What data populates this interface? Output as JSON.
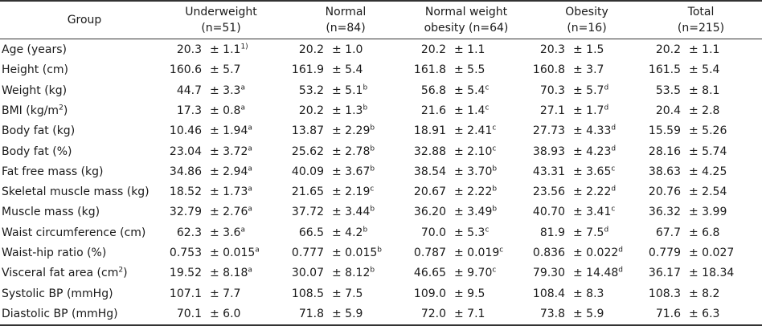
{
  "header": {
    "group": "Group",
    "columns": [
      {
        "name": "Underweight",
        "n": "(n=51)"
      },
      {
        "name": "Normal",
        "n": "(n=84)"
      },
      {
        "name": "Normal weight",
        "n": "obesity (n=64)"
      },
      {
        "name": "Obesity",
        "n": "(n=16)"
      },
      {
        "name": "Total",
        "n": "(n=215)"
      }
    ]
  },
  "rows": [
    {
      "label": "Age (years)",
      "cells": [
        {
          "m": "20.3",
          "sd": "± 1.1",
          "sup": "1)"
        },
        {
          "m": "20.2",
          "sd": "± 1.0",
          "sup": ""
        },
        {
          "m": "20.2",
          "sd": "± 1.1",
          "sup": ""
        },
        {
          "m": "20.3",
          "sd": "± 1.5",
          "sup": ""
        },
        {
          "m": "20.2",
          "sd": "± 1.1",
          "sup": ""
        }
      ]
    },
    {
      "label": "Height (cm)",
      "cells": [
        {
          "m": "160.6",
          "sd": "± 5.7",
          "sup": ""
        },
        {
          "m": "161.9",
          "sd": "± 5.4",
          "sup": ""
        },
        {
          "m": "161.8",
          "sd": "± 5.5",
          "sup": ""
        },
        {
          "m": "160.8",
          "sd": "± 3.7",
          "sup": ""
        },
        {
          "m": "161.5",
          "sd": "± 5.4",
          "sup": ""
        }
      ]
    },
    {
      "label": "Weight (kg)",
      "cells": [
        {
          "m": "44.7",
          "sd": "± 3.3",
          "sup": "a"
        },
        {
          "m": "53.2",
          "sd": "± 5.1",
          "sup": "b"
        },
        {
          "m": "56.8",
          "sd": "± 5.4",
          "sup": "c"
        },
        {
          "m": "70.3",
          "sd": "± 5.7",
          "sup": "d"
        },
        {
          "m": "53.5",
          "sd": "± 8.1",
          "sup": ""
        }
      ]
    },
    {
      "label": "BMI (kg/m",
      "labelSup": "2",
      "labelEnd": ")",
      "cells": [
        {
          "m": "17.3",
          "sd": "± 0.8",
          "sup": "a"
        },
        {
          "m": "20.2",
          "sd": "± 1.3",
          "sup": "b"
        },
        {
          "m": "21.6",
          "sd": "± 1.4",
          "sup": "c"
        },
        {
          "m": "27.1",
          "sd": "± 1.7",
          "sup": "d"
        },
        {
          "m": "20.4",
          "sd": "± 2.8",
          "sup": ""
        }
      ]
    },
    {
      "label": "Body fat (kg)",
      "cells": [
        {
          "m": "10.46",
          "sd": "± 1.94",
          "sup": "a"
        },
        {
          "m": "13.87",
          "sd": "± 2.29",
          "sup": "b"
        },
        {
          "m": "18.91",
          "sd": "± 2.41",
          "sup": "c"
        },
        {
          "m": "27.73",
          "sd": "± 4.33",
          "sup": "d"
        },
        {
          "m": "15.59",
          "sd": "± 5.26",
          "sup": ""
        }
      ]
    },
    {
      "label": "Body fat (%)",
      "cells": [
        {
          "m": "23.04",
          "sd": "± 3.72",
          "sup": "a"
        },
        {
          "m": "25.62",
          "sd": "± 2.78",
          "sup": "b"
        },
        {
          "m": "32.88",
          "sd": "± 2.10",
          "sup": "c"
        },
        {
          "m": "38.93",
          "sd": "± 4.23",
          "sup": "d"
        },
        {
          "m": "28.16",
          "sd": "± 5.74",
          "sup": ""
        }
      ]
    },
    {
      "label": "Fat free mass (kg)",
      "cells": [
        {
          "m": "34.86",
          "sd": "± 2.94",
          "sup": "a"
        },
        {
          "m": "40.09",
          "sd": "± 3.67",
          "sup": "b"
        },
        {
          "m": "38.54",
          "sd": "± 3.70",
          "sup": "b"
        },
        {
          "m": "43.31",
          "sd": "± 3.65",
          "sup": "c"
        },
        {
          "m": "38.63",
          "sd": "± 4.25",
          "sup": ""
        }
      ]
    },
    {
      "label": "Skeletal muscle mass (kg)",
      "cells": [
        {
          "m": "18.52",
          "sd": "± 1.73",
          "sup": "a"
        },
        {
          "m": "21.65",
          "sd": "± 2.19",
          "sup": "c"
        },
        {
          "m": "20.67",
          "sd": "± 2.22",
          "sup": "b"
        },
        {
          "m": "23.56",
          "sd": "± 2.22",
          "sup": "d"
        },
        {
          "m": "20.76",
          "sd": "± 2.54",
          "sup": ""
        }
      ]
    },
    {
      "label": "Muscle mass (kg)",
      "cells": [
        {
          "m": "32.79",
          "sd": "± 2.76",
          "sup": "a"
        },
        {
          "m": "37.72",
          "sd": "± 3.44",
          "sup": "b"
        },
        {
          "m": "36.20",
          "sd": "± 3.49",
          "sup": "b"
        },
        {
          "m": "40.70",
          "sd": "± 3.41",
          "sup": "c"
        },
        {
          "m": "36.32",
          "sd": "± 3.99",
          "sup": ""
        }
      ]
    },
    {
      "label": "Waist circumference (cm)",
      "cells": [
        {
          "m": "62.3",
          "sd": "± 3.6",
          "sup": "a"
        },
        {
          "m": "66.5",
          "sd": "± 4.2",
          "sup": "b"
        },
        {
          "m": "70.0",
          "sd": "± 5.3",
          "sup": "c"
        },
        {
          "m": "81.9",
          "sd": "± 7.5",
          "sup": "d"
        },
        {
          "m": "67.7",
          "sd": "± 6.8",
          "sup": ""
        }
      ]
    },
    {
      "label": "Waist-hip ratio (%)",
      "cells": [
        {
          "m": "0.753",
          "sd": "± 0.015",
          "sup": "a"
        },
        {
          "m": "0.777",
          "sd": "± 0.015",
          "sup": "b"
        },
        {
          "m": "0.787",
          "sd": "± 0.019",
          "sup": "c"
        },
        {
          "m": "0.836",
          "sd": "± 0.022",
          "sup": "d"
        },
        {
          "m": "0.779",
          "sd": "± 0.027",
          "sup": ""
        }
      ]
    },
    {
      "label": "Visceral fat area (cm",
      "labelSup": "2",
      "labelEnd": ")",
      "cells": [
        {
          "m": "19.52",
          "sd": "± 8.18",
          "sup": "a"
        },
        {
          "m": "30.07",
          "sd": "± 8.12",
          "sup": "b"
        },
        {
          "m": "46.65",
          "sd": "± 9.70",
          "sup": "c"
        },
        {
          "m": "79.30",
          "sd": "± 14.48",
          "sup": "d"
        },
        {
          "m": "36.17",
          "sd": "± 18.34",
          "sup": ""
        }
      ]
    },
    {
      "label": "Systolic BP (mmHg)",
      "cells": [
        {
          "m": "107.1",
          "sd": "± 7.7",
          "sup": ""
        },
        {
          "m": "108.5",
          "sd": "± 7.5",
          "sup": ""
        },
        {
          "m": "109.0",
          "sd": "± 9.5",
          "sup": ""
        },
        {
          "m": "108.4",
          "sd": "± 8.3",
          "sup": ""
        },
        {
          "m": "108.3",
          "sd": "± 8.2",
          "sup": ""
        }
      ]
    },
    {
      "label": "Diastolic BP (mmHg)",
      "cells": [
        {
          "m": "70.1",
          "sd": "± 6.0",
          "sup": ""
        },
        {
          "m": "71.8",
          "sd": "± 5.9",
          "sup": ""
        },
        {
          "m": "72.0",
          "sd": "± 7.1",
          "sup": ""
        },
        {
          "m": "73.8",
          "sd": "± 5.9",
          "sup": ""
        },
        {
          "m": "71.6",
          "sd": "± 6.3",
          "sup": ""
        }
      ]
    }
  ]
}
